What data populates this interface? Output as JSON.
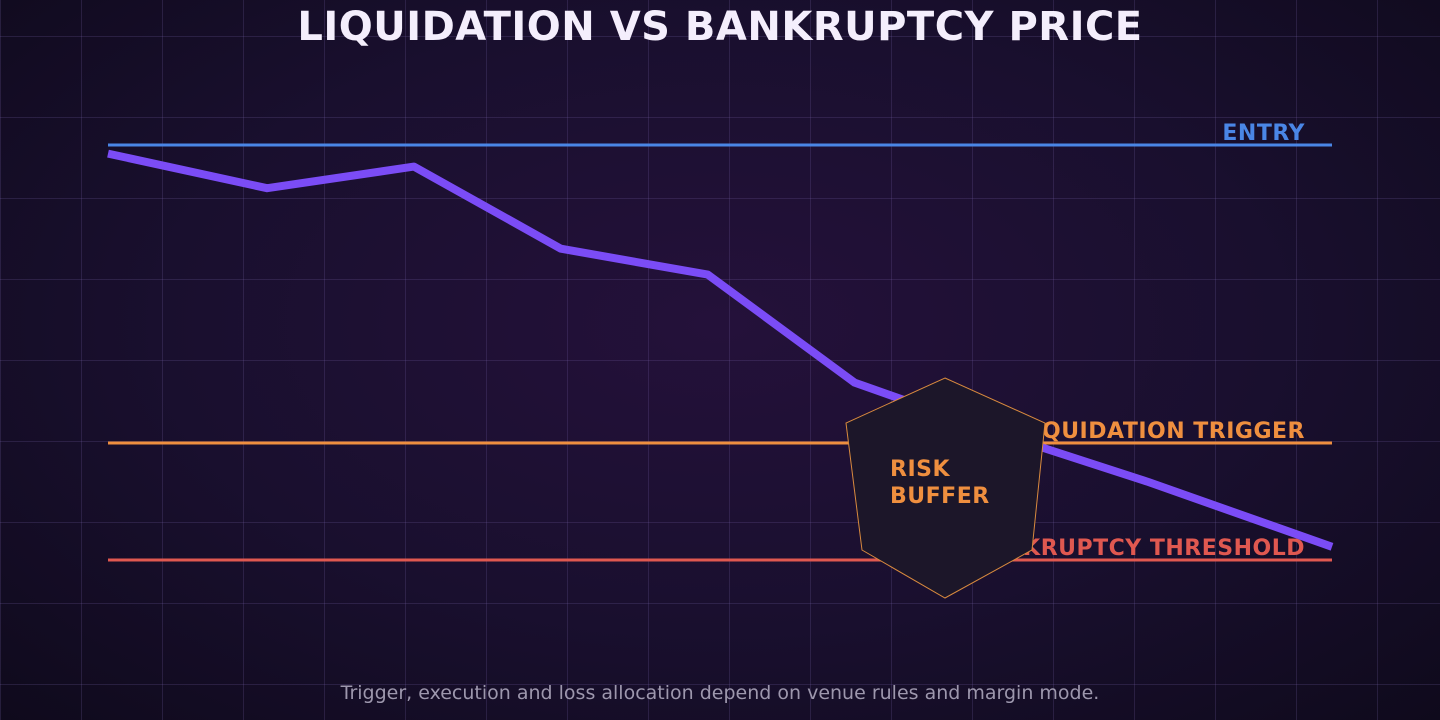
{
  "title": "LIQUIDATION VS BANKRUPTCY PRICE",
  "footnote": "Trigger, execution and loss allocation depend on venue rules and margin mode.",
  "colors": {
    "entry": "#4a86e6",
    "liquidation": "#ef8f3f",
    "bankruptcy": "#e05850",
    "price": "#7b4cf6",
    "buffer_fill": "#1c1629",
    "buffer_stroke": "#d98a3e"
  },
  "chart_data": {
    "type": "line",
    "title": "LIQUIDATION VS BANKRUPTCY PRICE",
    "xlabel": "",
    "ylabel": "",
    "xlim": [
      0,
      1
    ],
    "ylim": [
      0,
      1
    ],
    "grid": true,
    "series": [
      {
        "x": [
          0.0,
          0.13,
          0.25,
          0.37,
          0.49,
          0.61,
          0.73,
          0.85,
          1.0
        ],
        "values": [
          0.98,
          0.9,
          0.95,
          0.76,
          0.7,
          0.45,
          0.33,
          0.22,
          0.07
        ]
      }
    ],
    "reference_lines": [
      {
        "label": "ENTRY",
        "value": 1.0,
        "color": "#4a86e6"
      },
      {
        "label": "LIQUIDATION TRIGGER",
        "value": 0.31,
        "color": "#ef8f3f"
      },
      {
        "label": "BANKRUPTCY THRESHOLD",
        "value": 0.04,
        "color": "#e05850"
      }
    ],
    "annotation": {
      "label_lines": [
        "RISK",
        "BUFFER"
      ]
    }
  }
}
